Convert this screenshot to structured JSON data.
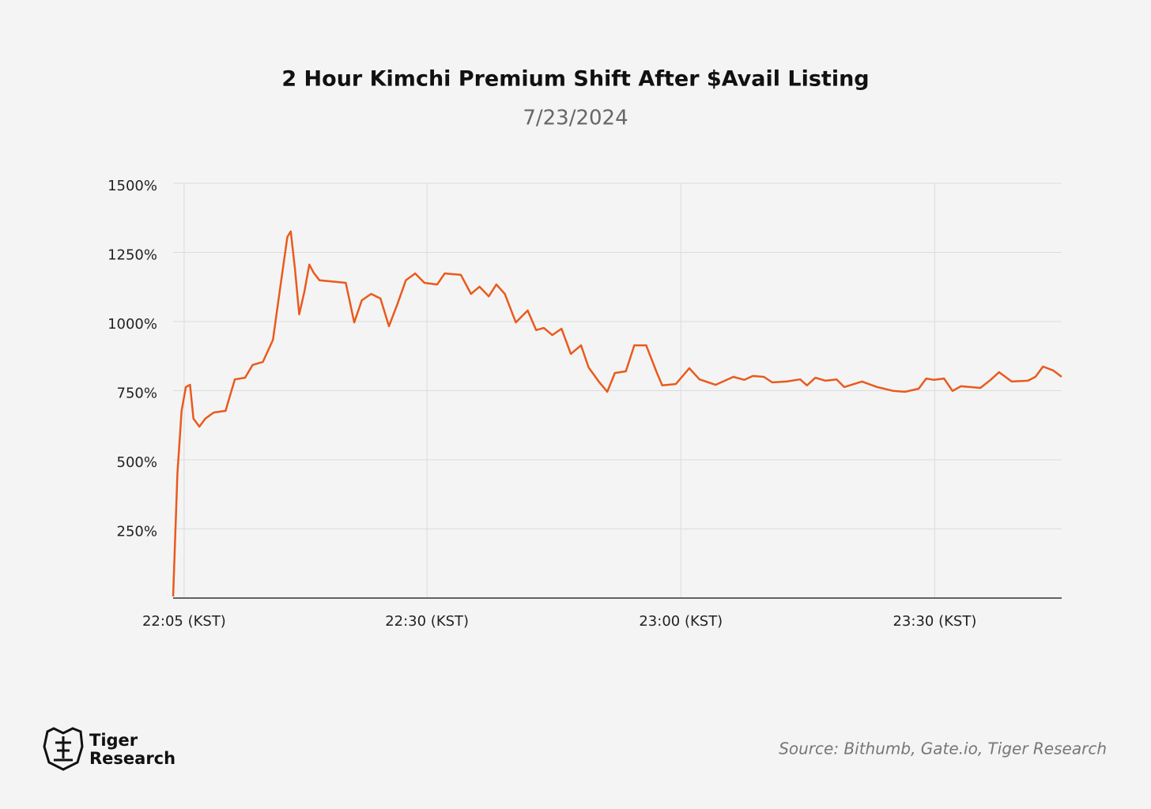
{
  "chart_data": {
    "type": "line",
    "title": "2 Hour Kimchi Premium Shift After $Avail Listing",
    "subtitle": "7/23/2024",
    "source": "Source: Bithumb, Gate.io, Tiger Research",
    "brand": [
      "Tiger",
      "Research"
    ],
    "x": [
      0,
      0.5,
      1,
      1.5,
      2,
      2.4,
      3.1,
      3.8,
      4.8,
      6.2,
      6.6,
      7.3,
      8.5,
      9.4,
      10.6,
      11.8,
      12.7,
      13.5,
      13.9,
      14.4,
      14.9,
      15.5,
      16.1,
      16.6,
      17.3,
      20.4,
      21.4,
      22.3,
      23.4,
      24.5,
      25.5,
      26.5,
      27.5,
      28.6,
      29.7,
      31.2,
      32.1,
      34,
      35.2,
      36.2,
      37.3,
      38.2,
      39.2,
      40.5,
      41.9,
      42.9,
      43.8,
      44.8,
      45.9,
      47,
      48.2,
      49.1,
      50.3,
      51.3,
      52.2,
      53.5,
      54.5,
      55.9,
      57.1,
      57.8,
      59.4,
      61,
      62.2,
      64.1,
      66.2,
      67.5,
      68.5,
      69.8,
      70.8,
      72.5,
      74.1,
      74.9,
      75.9,
      77.1,
      78.4,
      79.3,
      81.4,
      83.2,
      85.1,
      86.5,
      88.1,
      89,
      89.9,
      91.1,
      92.1,
      93.1,
      95.4,
      96.6,
      97.6,
      99.1,
      101,
      101.9,
      102.8,
      104,
      105
    ],
    "series": [
      {
        "name": "Kimchi Premium",
        "color": "#ea5a1c",
        "values": [
          6,
          449,
          677,
          763,
          771,
          649,
          620,
          649,
          671,
          677,
          720,
          791,
          797,
          843,
          854,
          934,
          1134,
          1306,
          1326,
          1191,
          1026,
          1106,
          1206,
          1177,
          1149,
          1140,
          997,
          1077,
          1100,
          1083,
          983,
          1063,
          1149,
          1174,
          1140,
          1134,
          1174,
          1169,
          1100,
          1126,
          1091,
          1134,
          1100,
          997,
          1040,
          969,
          977,
          951,
          974,
          883,
          914,
          834,
          783,
          746,
          814,
          820,
          914,
          914,
          820,
          769,
          774,
          831,
          791,
          771,
          800,
          789,
          803,
          800,
          780,
          783,
          791,
          769,
          797,
          786,
          791,
          763,
          783,
          763,
          749,
          746,
          757,
          794,
          789,
          794,
          749,
          766,
          760,
          789,
          817,
          783,
          786,
          800,
          837,
          823,
          800
        ]
      }
    ],
    "xlim": [
      0,
      105
    ],
    "xticks": [
      {
        "value": 1.3,
        "label": "22:05 (KST)"
      },
      {
        "value": 30,
        "label": "22:30 (KST)"
      },
      {
        "value": 60,
        "label": "23:00 (KST)"
      },
      {
        "value": 90,
        "label": "23:30 (KST)"
      }
    ],
    "ylim": [
      0,
      1500
    ],
    "yticks": [
      {
        "value": 250,
        "label": "250%"
      },
      {
        "value": 500,
        "label": "500%"
      },
      {
        "value": 750,
        "label": "750%"
      },
      {
        "value": 1000,
        "label": "1000%"
      },
      {
        "value": 1250,
        "label": "1250%"
      },
      {
        "value": 1500,
        "label": "1500%"
      }
    ],
    "grid": true
  }
}
